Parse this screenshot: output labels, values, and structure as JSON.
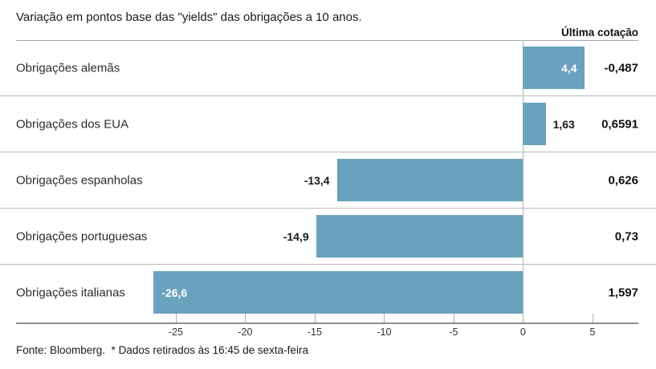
{
  "title": "Variação em pontos base das \"yields\" das obrigações a 10 anos.",
  "right_column_header": "Última cotação",
  "footer": "Fonte: Bloomberg.  * Dados retirados às 16:45 de sexta-feira",
  "colors": {
    "bar": "#6aa2be",
    "inside_label": "#ffffff",
    "outside_label": "#1a1a1a",
    "separator": "#b9b9b9",
    "axis": "#8c8c8c"
  },
  "chart_data": {
    "type": "bar",
    "orientation": "horizontal",
    "title": "Variação em pontos base das \"yields\" das obrigações a 10 anos.",
    "categories": [
      "Obrigações alemãs",
      "Obrigações dos EUA",
      "Obrigações espanholas",
      "Obrigações portuguesas",
      "Obrigações italianas"
    ],
    "values": [
      4.4,
      1.63,
      -13.4,
      -14.9,
      -26.6
    ],
    "value_labels": [
      "4,4",
      "1,63",
      "-13,4",
      "-14,9",
      "-26,6"
    ],
    "value_label_placement": [
      "inside-end",
      "outside-end",
      "outside-start",
      "outside-start",
      "inside-start"
    ],
    "last_quotes": [
      "-0,487",
      "0,6591",
      "0,626",
      "0,73",
      "1,597"
    ],
    "last_quote_column": "Última cotação",
    "tick_values": [
      -25,
      -20,
      -15,
      -10,
      -5,
      0,
      5
    ],
    "tick_labels": [
      "-25",
      "-20",
      "-15",
      "-10",
      "-5",
      "0",
      "5"
    ],
    "xlim": [
      -36.5,
      8.3
    ],
    "grid": false,
    "legend": false,
    "source_note": "Fonte: Bloomberg.  * Dados retirados às 16:45 de sexta-feira"
  }
}
